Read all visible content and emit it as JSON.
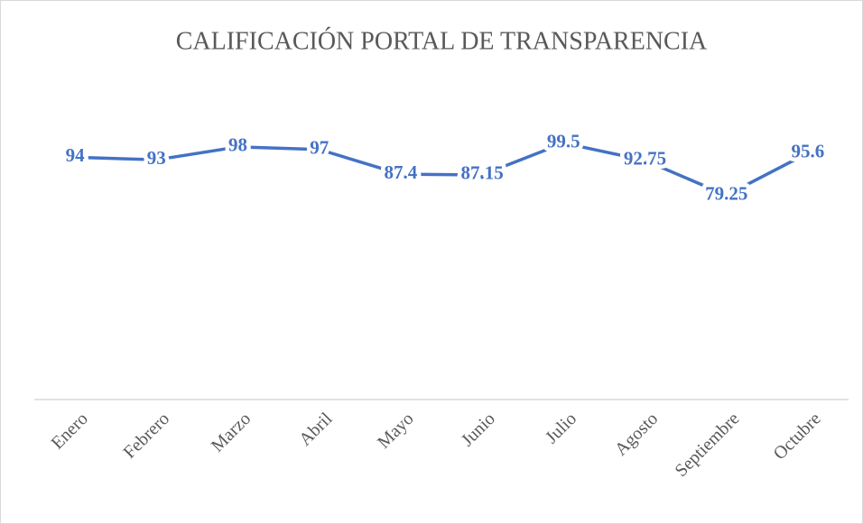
{
  "chart_data": {
    "type": "line",
    "title": "CALIFICACIÓN PORTAL DE TRANSPARENCIA",
    "categories": [
      "Enero",
      "Febrero",
      "Marzo",
      "Abril",
      "Mayo",
      "Junio",
      "Julio",
      "Agosto",
      "Septiembre",
      "Octubre"
    ],
    "values": [
      94,
      93,
      98,
      97,
      87.4,
      87.15,
      99.5,
      92.75,
      79.25,
      95.6
    ],
    "color": "#4472c4",
    "ylim": [
      0,
      120
    ],
    "data_labels": true
  }
}
